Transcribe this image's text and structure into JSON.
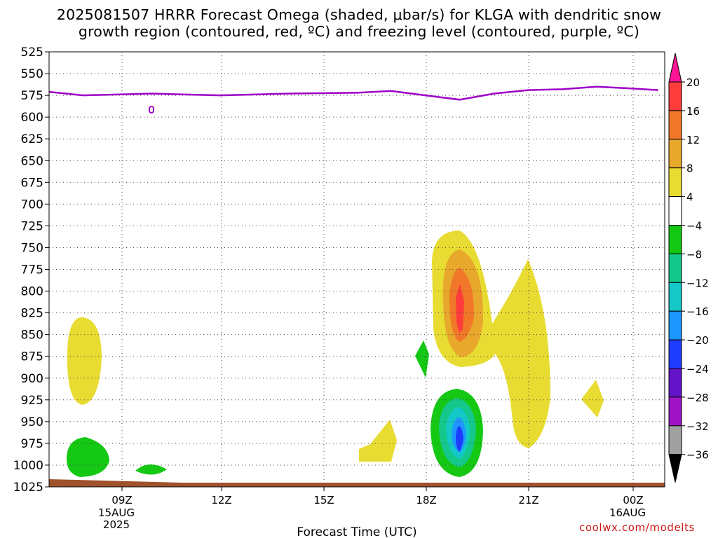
{
  "title_line1": "2025081507 HRRR Forecast Omega (shaded, μbar/s) for KLGA with dendritic snow",
  "title_line2": "growth region (contoured, red, ºC) and freezing level (contoured, purple, ºC)",
  "xlabel": "Forecast Time (UTC)",
  "credit": "coolwx.com/modelts",
  "colors": {
    "freezing_level": "#a000c8",
    "ground": "#a0522d",
    "grid": "#444444"
  },
  "chart_data": {
    "type": "contour",
    "title": "2025081507 HRRR Forecast Omega (shaded, μbar/s) for KLGA with dendritic snow growth region (contoured, red, ºC) and freezing level (contoured, purple, ºC)",
    "xlabel": "Forecast Time (UTC)",
    "ylabel": "",
    "x_range_hours_after_15Z07": [
      0,
      17.8
    ],
    "y_range_mb": [
      1025,
      525
    ],
    "y_ticks": [
      525,
      550,
      575,
      600,
      625,
      650,
      675,
      700,
      725,
      750,
      775,
      800,
      825,
      850,
      875,
      900,
      925,
      950,
      975,
      1000,
      1025
    ],
    "x_ticks": [
      {
        "label": "09Z",
        "sub": [
          "15AUG",
          "2025"
        ]
      },
      {
        "label": "12Z",
        "sub": []
      },
      {
        "label": "15Z",
        "sub": []
      },
      {
        "label": "18Z",
        "sub": []
      },
      {
        "label": "21Z",
        "sub": []
      },
      {
        "label": "00Z",
        "sub": [
          "16AUG"
        ]
      }
    ],
    "colorbar": {
      "labels": [
        "20",
        "16",
        "12",
        "8",
        "4",
        "−4",
        "−8",
        "−12",
        "−16",
        "−20",
        "−24",
        "−28",
        "−32",
        "−36"
      ],
      "colors": [
        "#ff1493",
        "#ff3c3c",
        "#f07828",
        "#e8a82c",
        "#e8dc32",
        "#ffffff",
        "#14c814",
        "#14c88c",
        "#14c8c8",
        "#1e96ff",
        "#1e3cff",
        "#6414c8",
        "#a014c8",
        "#a0a0a0",
        "#000000"
      ]
    },
    "freezing_level_mb": {
      "hours": [
        0,
        1,
        2,
        3,
        5,
        7,
        9,
        10,
        11,
        12,
        13,
        14,
        15,
        16,
        17,
        17.8
      ],
      "pressure": [
        571,
        575,
        574,
        573,
        575,
        573,
        572,
        570,
        575,
        580,
        573,
        569,
        568,
        565,
        567,
        569
      ]
    },
    "omega_regions": [
      {
        "level": "4 to 8",
        "desc": "positive omega near 08Z around 800-900 mb"
      },
      {
        "level": "-4 to -8",
        "desc": "negative omega near 08Z around 950-1000 mb"
      },
      {
        "level": "-4 to -8",
        "desc": "negative omega near 10Z near 1000 mb"
      },
      {
        "level": "4 to 8",
        "desc": "positive omega near 17Z around 935-990 mb"
      },
      {
        "level": "-4 to -8",
        "desc": "negative omega near 18Z around 850 mb"
      },
      {
        "level": "4 to 20",
        "desc": "positive omega core near 19Z around 700-850 mb, max 16-20"
      },
      {
        "level": "-4 to -24",
        "desc": "negative omega core near 19Z around 900-1000 mb, min near -24"
      },
      {
        "level": "4 to 8",
        "desc": "positive omega near 21Z around 730-960 mb"
      },
      {
        "level": "4 to 8",
        "desc": "positive omega near 23Z around 890-920 mb"
      }
    ]
  }
}
